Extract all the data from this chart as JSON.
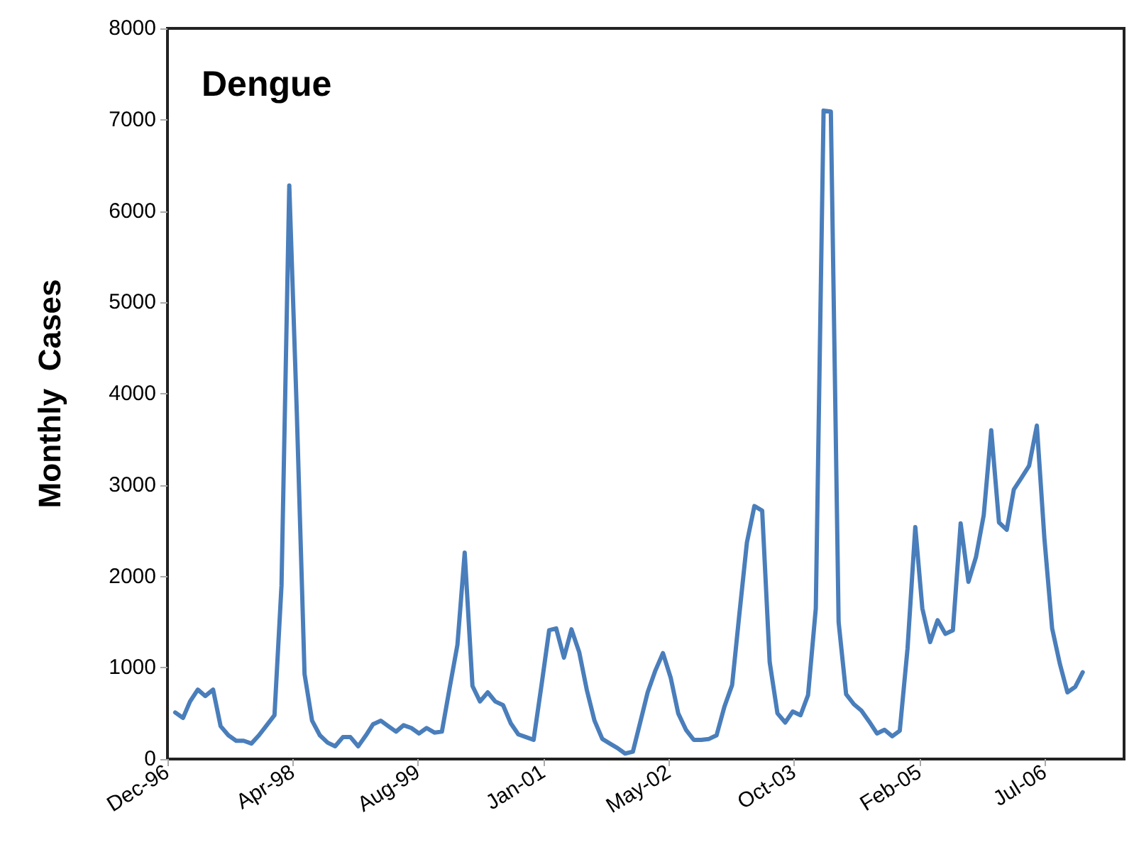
{
  "chart_data": {
    "type": "line",
    "title": "Dengue",
    "ylabel": "Monthly  Cases",
    "x": [
      "1997-01",
      "1997-02",
      "1997-03",
      "1997-04",
      "1997-05",
      "1997-06",
      "1997-07",
      "1997-08",
      "1997-09",
      "1997-10",
      "1997-11",
      "1997-12",
      "1998-01",
      "1998-02",
      "1998-03",
      "1998-04",
      "1998-05",
      "1998-06",
      "1998-07",
      "1998-08",
      "1998-09",
      "1998-10",
      "1998-11",
      "1998-12",
      "1999-01",
      "1999-02",
      "1999-03",
      "1999-04",
      "1999-05",
      "1999-06",
      "1999-07",
      "1999-08",
      "1999-09",
      "1999-10",
      "1999-11",
      "1999-12",
      "2000-01",
      "2000-02",
      "2000-03",
      "2000-04",
      "2000-05",
      "2000-06",
      "2000-07",
      "2000-08",
      "2000-09",
      "2000-10",
      "2000-11",
      "2000-12",
      "2001-01",
      "2001-02",
      "2001-03",
      "2001-04",
      "2001-05",
      "2001-06",
      "2001-07",
      "2001-08",
      "2001-09",
      "2001-10",
      "2001-11",
      "2001-12",
      "2002-01",
      "2002-02",
      "2002-03",
      "2002-04",
      "2002-05",
      "2002-06",
      "2002-07",
      "2002-08",
      "2002-09",
      "2002-10",
      "2002-11",
      "2002-12",
      "2003-01",
      "2003-02",
      "2003-03",
      "2003-04",
      "2003-05",
      "2003-06",
      "2003-07",
      "2003-08",
      "2003-09",
      "2003-10",
      "2003-11",
      "2003-12",
      "2004-01",
      "2004-02",
      "2004-03",
      "2004-04",
      "2004-05",
      "2004-06",
      "2004-07",
      "2004-08",
      "2004-09",
      "2004-10",
      "2004-11",
      "2004-12",
      "2005-01",
      "2005-02",
      "2005-03",
      "2005-04",
      "2005-05",
      "2005-06",
      "2005-07",
      "2005-08",
      "2005-09",
      "2005-10",
      "2005-11",
      "2005-12",
      "2006-01",
      "2006-02",
      "2006-03",
      "2006-04",
      "2006-05",
      "2006-06",
      "2006-07",
      "2006-08",
      "2006-09",
      "2006-10",
      "2006-11",
      "2006-12"
    ],
    "series": [
      {
        "color": "#4a7ebb",
        "values": [
          510,
          450,
          630,
          760,
          690,
          760,
          360,
          260,
          200,
          200,
          170,
          260,
          370,
          480,
          1900,
          6280,
          3800,
          930,
          420,
          260,
          180,
          140,
          240,
          240,
          140,
          260,
          380,
          420,
          360,
          300,
          370,
          340,
          280,
          340,
          290,
          300,
          780,
          1250,
          2260,
          800,
          630,
          730,
          630,
          590,
          390,
          270,
          240,
          210,
          800,
          1410,
          1430,
          1110,
          1420,
          1170,
          760,
          420,
          220,
          170,
          120,
          60,
          80,
          420,
          730,
          970,
          1160,
          890,
          500,
          320,
          210,
          210,
          220,
          260,
          570,
          810,
          1560,
          2370,
          2770,
          2720,
          1060,
          500,
          400,
          520,
          480,
          700,
          1650,
          7100,
          7090,
          1500,
          710,
          600,
          530,
          410,
          280,
          320,
          250,
          310,
          1210,
          2540,
          1650,
          1280,
          1520,
          1370,
          1410,
          2580,
          1940,
          2210,
          2670,
          3600,
          2590,
          2510,
          2950,
          3080,
          3210,
          3650,
          2420,
          1430,
          1040,
          730,
          790,
          950
        ]
      }
    ],
    "xlim": [
      "1996-12-01",
      "2007-05-15"
    ],
    "xticks": [
      {
        "value": "1996-12-01",
        "label": "Dec-96"
      },
      {
        "value": "1998-04-15",
        "label": "Apr-98"
      },
      {
        "value": "1999-08-28",
        "label": "Aug-99"
      },
      {
        "value": "2001-01-09",
        "label": "Jan-01"
      },
      {
        "value": "2002-05-24",
        "label": "May-02"
      },
      {
        "value": "2003-10-06",
        "label": "Oct-03"
      },
      {
        "value": "2005-02-18",
        "label": "Feb-05"
      },
      {
        "value": "2006-07-03",
        "label": "Jul-06"
      }
    ],
    "ylim": [
      0,
      8000
    ],
    "yticks": [
      0,
      1000,
      2000,
      3000,
      4000,
      5000,
      6000,
      7000,
      8000
    ],
    "grid": false,
    "marker": "none",
    "line_style": "solid"
  }
}
